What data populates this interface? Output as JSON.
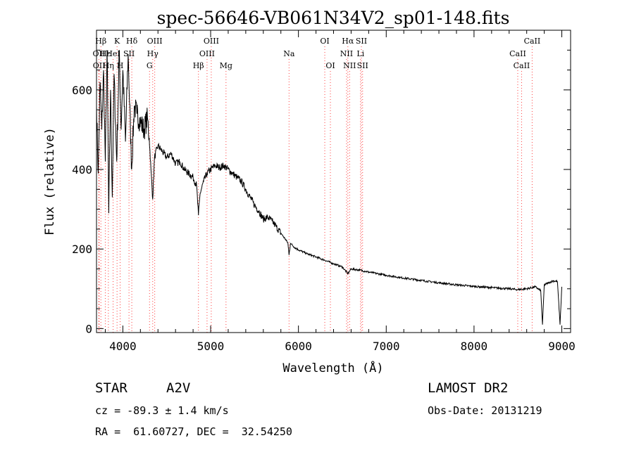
{
  "chart_data": {
    "type": "line",
    "title": "spec-56646-VB061N34V2_sp01-148.fits",
    "xlabel": "Wavelength (Å)",
    "ylabel": "Flux (relative)",
    "xlim": [
      3700,
      9100
    ],
    "ylim": [
      -10,
      750
    ],
    "x_ticks": [
      4000,
      5000,
      6000,
      7000,
      8000,
      9000
    ],
    "y_ticks": [
      0,
      200,
      400,
      600
    ],
    "grid": false,
    "line_color": "#000000",
    "marker_line_color": "#ff4040",
    "spectrum": [
      {
        "x": 3700,
        "y": 560
      },
      {
        "x": 3720,
        "y": 390
      },
      {
        "x": 3740,
        "y": 620
      },
      {
        "x": 3760,
        "y": 500
      },
      {
        "x": 3780,
        "y": 650
      },
      {
        "x": 3800,
        "y": 420
      },
      {
        "x": 3820,
        "y": 700
      },
      {
        "x": 3840,
        "y": 290
      },
      {
        "x": 3860,
        "y": 600
      },
      {
        "x": 3880,
        "y": 330
      },
      {
        "x": 3900,
        "y": 640
      },
      {
        "x": 3930,
        "y": 420
      },
      {
        "x": 3960,
        "y": 700
      },
      {
        "x": 3980,
        "y": 500
      },
      {
        "x": 4000,
        "y": 650
      },
      {
        "x": 4030,
        "y": 470
      },
      {
        "x": 4060,
        "y": 690
      },
      {
        "x": 4100,
        "y": 400
      },
      {
        "x": 4130,
        "y": 560
      },
      {
        "x": 4160,
        "y": 540
      },
      {
        "x": 4200,
        "y": 520
      },
      {
        "x": 4240,
        "y": 500
      },
      {
        "x": 4280,
        "y": 530
      },
      {
        "x": 4300,
        "y": 480
      },
      {
        "x": 4320,
        "y": 400
      },
      {
        "x": 4340,
        "y": 325
      },
      {
        "x": 4360,
        "y": 430
      },
      {
        "x": 4400,
        "y": 460
      },
      {
        "x": 4450,
        "y": 445
      },
      {
        "x": 4500,
        "y": 430
      },
      {
        "x": 4550,
        "y": 440
      },
      {
        "x": 4600,
        "y": 415
      },
      {
        "x": 4650,
        "y": 420
      },
      {
        "x": 4700,
        "y": 400
      },
      {
        "x": 4750,
        "y": 390
      },
      {
        "x": 4800,
        "y": 380
      },
      {
        "x": 4840,
        "y": 360
      },
      {
        "x": 4861,
        "y": 285
      },
      {
        "x": 4880,
        "y": 340
      },
      {
        "x": 4920,
        "y": 370
      },
      {
        "x": 4960,
        "y": 390
      },
      {
        "x": 5000,
        "y": 400
      },
      {
        "x": 5050,
        "y": 410
      },
      {
        "x": 5100,
        "y": 405
      },
      {
        "x": 5150,
        "y": 410
      },
      {
        "x": 5200,
        "y": 400
      },
      {
        "x": 5250,
        "y": 390
      },
      {
        "x": 5300,
        "y": 380
      },
      {
        "x": 5350,
        "y": 370
      },
      {
        "x": 5400,
        "y": 350
      },
      {
        "x": 5450,
        "y": 330
      },
      {
        "x": 5500,
        "y": 310
      },
      {
        "x": 5550,
        "y": 295
      },
      {
        "x": 5600,
        "y": 275
      },
      {
        "x": 5650,
        "y": 280
      },
      {
        "x": 5700,
        "y": 270
      },
      {
        "x": 5750,
        "y": 255
      },
      {
        "x": 5800,
        "y": 240
      },
      {
        "x": 5850,
        "y": 225
      },
      {
        "x": 5880,
        "y": 215
      },
      {
        "x": 5893,
        "y": 185
      },
      {
        "x": 5910,
        "y": 215
      },
      {
        "x": 5950,
        "y": 205
      },
      {
        "x": 6000,
        "y": 198
      },
      {
        "x": 6100,
        "y": 188
      },
      {
        "x": 6200,
        "y": 180
      },
      {
        "x": 6300,
        "y": 172
      },
      {
        "x": 6400,
        "y": 163
      },
      {
        "x": 6500,
        "y": 155
      },
      {
        "x": 6563,
        "y": 138
      },
      {
        "x": 6600,
        "y": 150
      },
      {
        "x": 6700,
        "y": 147
      },
      {
        "x": 6800,
        "y": 142
      },
      {
        "x": 6900,
        "y": 138
      },
      {
        "x": 7000,
        "y": 134
      },
      {
        "x": 7200,
        "y": 127
      },
      {
        "x": 7400,
        "y": 121
      },
      {
        "x": 7600,
        "y": 115
      },
      {
        "x": 7800,
        "y": 110
      },
      {
        "x": 8000,
        "y": 106
      },
      {
        "x": 8200,
        "y": 103
      },
      {
        "x": 8400,
        "y": 100
      },
      {
        "x": 8500,
        "y": 98
      },
      {
        "x": 8600,
        "y": 100
      },
      {
        "x": 8700,
        "y": 105
      },
      {
        "x": 8760,
        "y": 95
      },
      {
        "x": 8780,
        "y": 10
      },
      {
        "x": 8800,
        "y": 110
      },
      {
        "x": 8850,
        "y": 115
      },
      {
        "x": 8900,
        "y": 120
      },
      {
        "x": 8950,
        "y": 118
      },
      {
        "x": 8980,
        "y": 10
      },
      {
        "x": 9000,
        "y": 105
      }
    ],
    "lines": [
      {
        "label": "Hβ",
        "x": 3750,
        "row": 0
      },
      {
        "label": "OII",
        "x": 3727,
        "row": 1
      },
      {
        "label": "OII",
        "x": 3729,
        "row": 2
      },
      {
        "label": "Hε",
        "x": 3800,
        "row": 1
      },
      {
        "label": "Hη",
        "x": 3835,
        "row": 2
      },
      {
        "label": "K",
        "x": 3934,
        "row": 0
      },
      {
        "label": "HeI",
        "x": 3889,
        "row": 1
      },
      {
        "label": "H",
        "x": 3969,
        "row": 2
      },
      {
        "label": "SII",
        "x": 4070,
        "row": 1
      },
      {
        "label": "Hδ",
        "x": 4102,
        "row": 0
      },
      {
        "label": "OIII",
        "x": 4363,
        "row": 0
      },
      {
        "label": "Hγ",
        "x": 4340,
        "row": 1
      },
      {
        "label": "G",
        "x": 4304,
        "row": 2
      },
      {
        "label": "Hβ",
        "x": 4861,
        "row": 2
      },
      {
        "label": "OIII",
        "x": 5007,
        "row": 0
      },
      {
        "label": "OIII",
        "x": 4959,
        "row": 1
      },
      {
        "label": "Mg",
        "x": 5175,
        "row": 2
      },
      {
        "label": "Na",
        "x": 5893,
        "row": 1
      },
      {
        "label": "OI",
        "x": 6300,
        "row": 0
      },
      {
        "label": "OI",
        "x": 6364,
        "row": 2
      },
      {
        "label": "Hα",
        "x": 6563,
        "row": 0
      },
      {
        "label": "SII",
        "x": 6717,
        "row": 0
      },
      {
        "label": "NII",
        "x": 6548,
        "row": 1
      },
      {
        "label": "Li",
        "x": 6707,
        "row": 1
      },
      {
        "label": "NII",
        "x": 6583,
        "row": 2
      },
      {
        "label": "SII",
        "x": 6731,
        "row": 2
      },
      {
        "label": "CaII",
        "x": 8662,
        "row": 0
      },
      {
        "label": "CaII",
        "x": 8498,
        "row": 1
      },
      {
        "label": "CaII",
        "x": 8542,
        "row": 2
      }
    ]
  },
  "info": {
    "class_label": "STAR",
    "subclass": "A2V",
    "survey": "LAMOST DR2",
    "cz": "cz = -89.3 ± 1.4 km/s",
    "obs_date": "Obs-Date: 20131219",
    "coords": "RA =  61.60727, DEC =  32.54250"
  }
}
